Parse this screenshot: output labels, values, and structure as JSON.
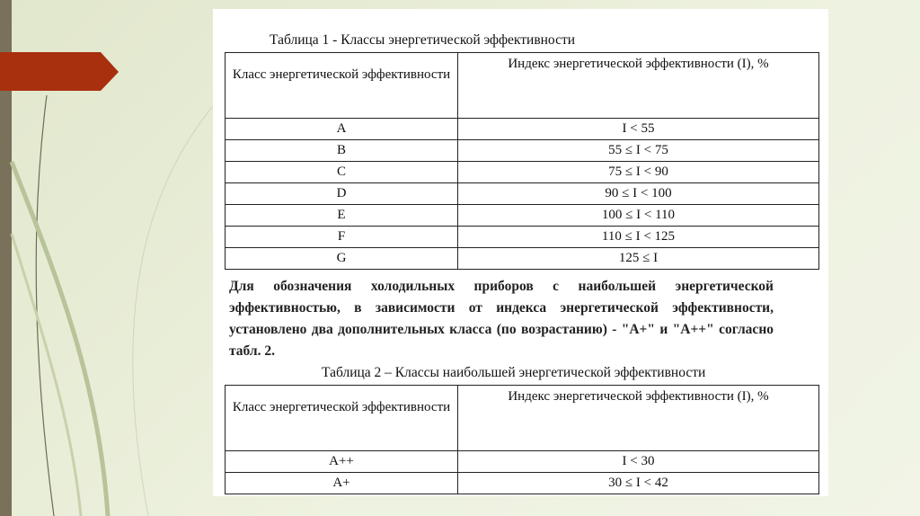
{
  "table1": {
    "title": "Таблица 1 - Классы энергетической эффективности",
    "headers": [
      "Класс энергетической эффективности",
      "Индекс энергетической эффективности (I), %"
    ],
    "rows": [
      [
        "A",
        "I < 55"
      ],
      [
        "B",
        "55 ≤ I < 75"
      ],
      [
        "C",
        "75 ≤ I < 90"
      ],
      [
        "D",
        "90 ≤ I < 100"
      ],
      [
        "E",
        "100 ≤ I < 110"
      ],
      [
        "F",
        "110 ≤ I < 125"
      ],
      [
        "G",
        "125 ≤ I"
      ]
    ]
  },
  "paragraph": "Для обозначения холодильных приборов с наибольшей энергетической эффективностью, в зависимости от индекса энергетической эффективности, установлено два дополнительных класса (по возрастанию) - \"A+\" и \"A++\" согласно табл. 2.",
  "table2": {
    "title": "Таблица 2 – Классы наибольшей энергетической эффективности",
    "headers": [
      "Класс энергетической эффективности",
      "Индекс энергетической эффективности (I), %"
    ],
    "rows": [
      [
        "A++",
        "I < 30"
      ],
      [
        "A+",
        "30 ≤ I < 42"
      ]
    ]
  },
  "colors": {
    "accent_arrow": "#a8300f",
    "side_bar": "#7a715a",
    "background": "#e6ebd2"
  }
}
